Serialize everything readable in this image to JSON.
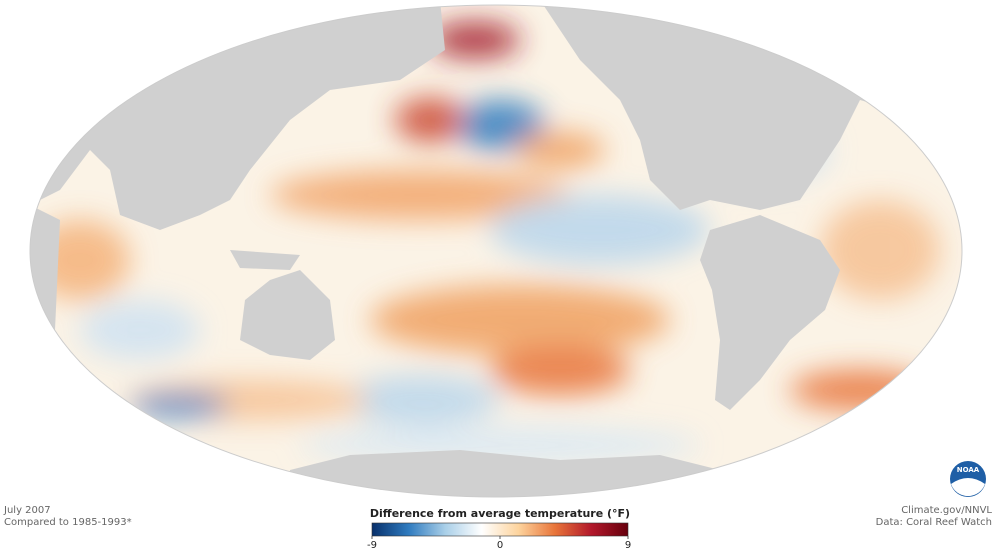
{
  "header": {
    "date": "July 2007",
    "baseline": "Compared to 1985-1993*"
  },
  "credits": {
    "source": "Climate.gov/NNVL",
    "data": "Data: Coral Reef Watch"
  },
  "logo": "NOAA",
  "colorbar": {
    "title": "Difference from average temperature (°F)",
    "range": [
      -9,
      9
    ],
    "ticks": [
      -9,
      0,
      9
    ],
    "colors": [
      "#08306b",
      "#2f7bbf",
      "#a9cfe8",
      "#ffffff",
      "#fdd49e",
      "#e8753a",
      "#b2182b",
      "#67000d"
    ]
  }
}
